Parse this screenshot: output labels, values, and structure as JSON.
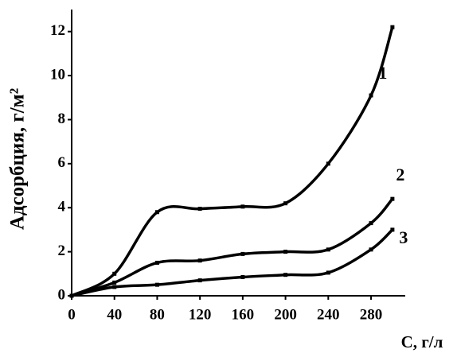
{
  "chart_data": {
    "type": "line",
    "x_label": "C, г/л",
    "y_label": "Адсорбция, г/м²",
    "x": [
      0,
      40,
      80,
      120,
      160,
      200,
      240,
      280,
      300
    ],
    "series": [
      {
        "name": "1",
        "color": "#000000",
        "values": [
          0,
          1.0,
          3.8,
          3.95,
          4.05,
          4.2,
          6.0,
          9.1,
          12.2
        ]
      },
      {
        "name": "2",
        "color": "#000000",
        "values": [
          0,
          0.6,
          1.5,
          1.6,
          1.9,
          2.0,
          2.1,
          3.3,
          4.4
        ]
      },
      {
        "name": "3",
        "color": "#000000",
        "values": [
          0,
          0.4,
          0.5,
          0.7,
          0.85,
          0.95,
          1.05,
          2.1,
          3.0
        ]
      }
    ],
    "xlim": [
      0,
      312
    ],
    "ylim": [
      0,
      13
    ],
    "xticks": [
      0,
      40,
      80,
      120,
      160,
      200,
      240,
      280
    ],
    "yticks": [
      0,
      2,
      4,
      6,
      8,
      10,
      12
    ],
    "grid": false
  }
}
